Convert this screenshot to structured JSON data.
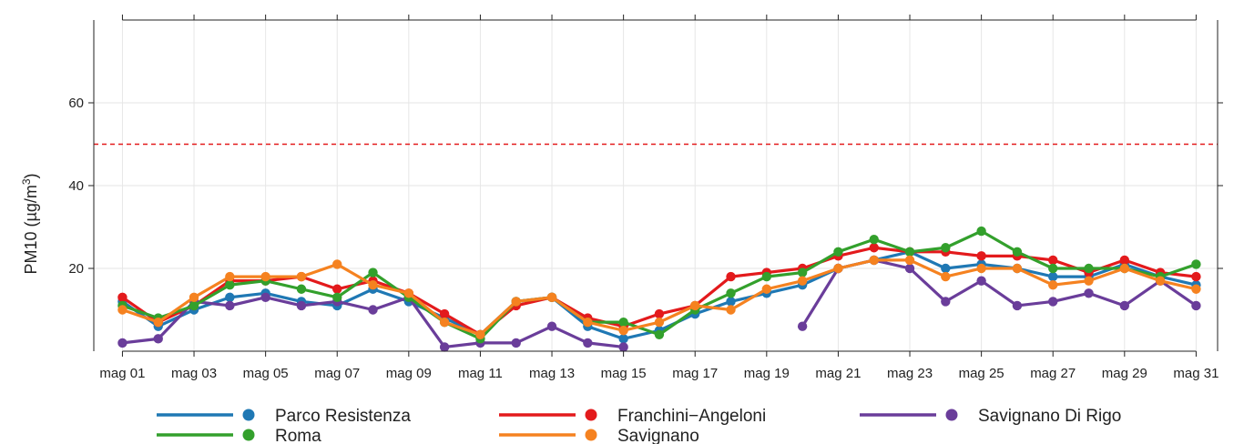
{
  "chart_data": {
    "type": "line",
    "ylabel": {
      "prefix": "PM10 (µg/m",
      "sup": "3",
      "suffix": ")"
    },
    "xlim": [
      1,
      31
    ],
    "ylim": [
      0,
      80
    ],
    "yticks": [
      20,
      40,
      60
    ],
    "xticks": [
      {
        "day": 1,
        "label": "mag 01"
      },
      {
        "day": 3,
        "label": "mag 03"
      },
      {
        "day": 5,
        "label": "mag 05"
      },
      {
        "day": 7,
        "label": "mag 07"
      },
      {
        "day": 9,
        "label": "mag 09"
      },
      {
        "day": 11,
        "label": "mag 11"
      },
      {
        "day": 13,
        "label": "mag 13"
      },
      {
        "day": 15,
        "label": "mag 15"
      },
      {
        "day": 17,
        "label": "mag 17"
      },
      {
        "day": 19,
        "label": "mag 19"
      },
      {
        "day": 21,
        "label": "mag 21"
      },
      {
        "day": 23,
        "label": "mag 23"
      },
      {
        "day": 25,
        "label": "mag 25"
      },
      {
        "day": 27,
        "label": "mag 27"
      },
      {
        "day": 29,
        "label": "mag 29"
      },
      {
        "day": 31,
        "label": "mag 31"
      }
    ],
    "reference_line": {
      "value": 50,
      "color": "#e31a1c",
      "style": "dashed"
    },
    "grid": true,
    "legend_position": "bottom",
    "series": [
      {
        "name": "Parco Resistenza",
        "color": "#1f78b4",
        "values": [
          12,
          6,
          10,
          13,
          14,
          12,
          11,
          15,
          12,
          8,
          4,
          12,
          13,
          6,
          3,
          5,
          9,
          12,
          14,
          16,
          20,
          22,
          24,
          20,
          21,
          20,
          18,
          18,
          21,
          18,
          16
        ]
      },
      {
        "name": "Franchini−Angeloni",
        "color": "#e31a1c",
        "values": [
          13,
          7,
          11,
          17,
          17,
          18,
          15,
          17,
          14,
          9,
          4,
          11,
          13,
          8,
          6,
          9,
          11,
          18,
          19,
          20,
          23,
          25,
          24,
          24,
          23,
          23,
          22,
          19,
          22,
          19,
          18
        ]
      },
      {
        "name": "Savignano Di Rigo",
        "color": "#6a3d9a",
        "values": [
          2,
          3,
          12,
          11,
          13,
          11,
          12,
          10,
          13,
          1,
          2,
          2,
          6,
          2,
          1,
          null,
          null,
          null,
          null,
          6,
          20,
          22,
          20,
          12,
          17,
          11,
          12,
          14,
          11,
          17,
          11
        ]
      },
      {
        "name": "Roma",
        "color": "#33a02c",
        "values": [
          11,
          8,
          11,
          16,
          17,
          15,
          13,
          19,
          13,
          7,
          3,
          12,
          13,
          7,
          7,
          4,
          10,
          14,
          18,
          19,
          24,
          27,
          24,
          25,
          29,
          24,
          20,
          20,
          20,
          18,
          21
        ]
      },
      {
        "name": "Savignano",
        "color": "#f58220",
        "values": [
          10,
          7,
          13,
          18,
          18,
          18,
          21,
          16,
          14,
          7,
          4,
          12,
          13,
          7,
          5,
          7,
          11,
          10,
          15,
          17,
          20,
          22,
          22,
          18,
          20,
          20,
          16,
          17,
          20,
          17,
          15
        ]
      }
    ],
    "legend": [
      {
        "series": 0,
        "col": 0,
        "row": 0
      },
      {
        "series": 3,
        "col": 0,
        "row": 1
      },
      {
        "series": 1,
        "col": 1,
        "row": 0
      },
      {
        "series": 4,
        "col": 1,
        "row": 1
      },
      {
        "series": 2,
        "col": 2,
        "row": 0
      }
    ]
  }
}
